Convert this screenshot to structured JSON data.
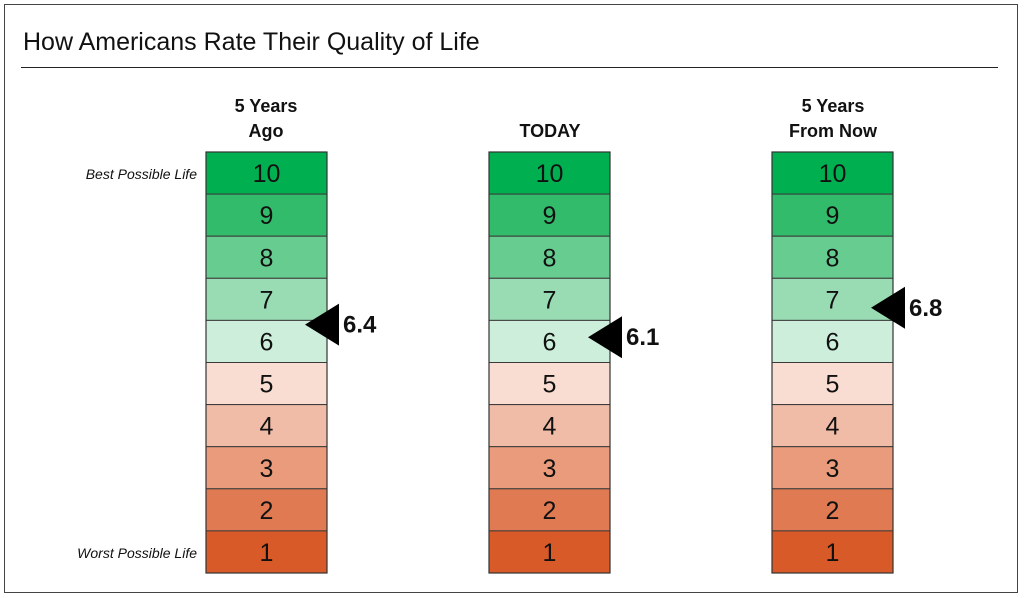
{
  "title": "How Americans Rate Their Quality of Life",
  "side_labels": {
    "top": "Best Possible Life",
    "bottom": "Worst Possible Life"
  },
  "colors": {
    "scale": {
      "10": "#00b050",
      "9": "#33bb6c",
      "8": "#66cc90",
      "7": "#99dcb4",
      "6": "#cceeda",
      "5": "#f9ddd3",
      "4": "#f1bca7",
      "3": "#e99b7c",
      "2": "#e07a52",
      "1": "#d95a29"
    },
    "marker": "#000000"
  },
  "chart_data": {
    "type": "table",
    "scale": [
      10,
      9,
      8,
      7,
      6,
      5,
      4,
      3,
      2,
      1
    ],
    "series": [
      {
        "name": "5 Years Ago",
        "header_lines": [
          "5 Years",
          "Ago"
        ],
        "value": 6.4,
        "label": "6.4"
      },
      {
        "name": "TODAY",
        "header_lines": [
          "TODAY"
        ],
        "value": 6.1,
        "label": "6.1"
      },
      {
        "name": "5 Years From Now",
        "header_lines": [
          "5 Years",
          "From Now"
        ],
        "value": 6.8,
        "label": "6.8"
      }
    ]
  }
}
